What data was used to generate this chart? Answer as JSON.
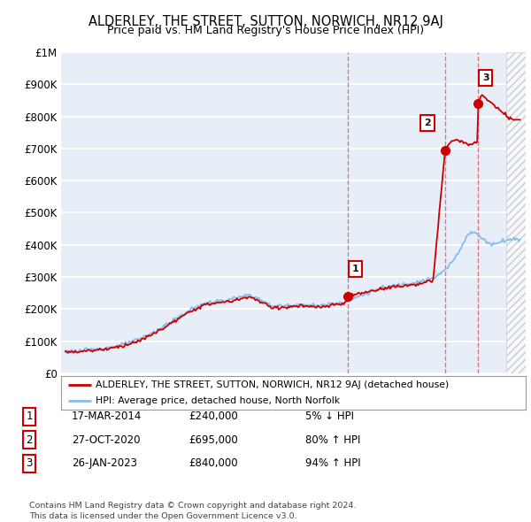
{
  "title": "ALDERLEY, THE STREET, SUTTON, NORWICH, NR12 9AJ",
  "subtitle": "Price paid vs. HM Land Registry's House Price Index (HPI)",
  "title_fontsize": 10.5,
  "subtitle_fontsize": 9,
  "ylim": [
    0,
    1000000
  ],
  "xlim_start": 1994.7,
  "xlim_end": 2026.3,
  "ytick_labels": [
    "£0",
    "£100K",
    "£200K",
    "£300K",
    "£400K",
    "£500K",
    "£600K",
    "£700K",
    "£800K",
    "£900K",
    "£1M"
  ],
  "ytick_values": [
    0,
    100000,
    200000,
    300000,
    400000,
    500000,
    600000,
    700000,
    800000,
    900000,
    1000000
  ],
  "background_color": "#e8eef8",
  "grid_color": "#ffffff",
  "hatch_color": "#cccccc",
  "line_color_red": "#cc0000",
  "line_color_blue": "#88bbee",
  "sale_dates": [
    2014.21,
    2020.82,
    2023.07
  ],
  "sale_prices": [
    240000,
    695000,
    840000
  ],
  "sale_labels": [
    "1",
    "2",
    "3"
  ],
  "legend_label_red": "ALDERLEY, THE STREET, SUTTON, NORWICH, NR12 9AJ (detached house)",
  "legend_label_blue": "HPI: Average price, detached house, North Norfolk",
  "table_rows": [
    [
      "1",
      "17-MAR-2014",
      "£240,000",
      "5% ↓ HPI"
    ],
    [
      "2",
      "27-OCT-2020",
      "£695,000",
      "80% ↑ HPI"
    ],
    [
      "3",
      "26-JAN-2023",
      "£840,000",
      "94% ↑ HPI"
    ]
  ],
  "footnote": "Contains HM Land Registry data © Crown copyright and database right 2024.\nThis data is licensed under the Open Government Licence v3.0.",
  "dashed_line_color": "#dd4444",
  "dashed_line_alpha": 0.7,
  "hpi_anchors_x": [
    1995.0,
    1996.0,
    1997.0,
    1998.0,
    1999.0,
    2000.0,
    2001.0,
    2002.0,
    2003.0,
    2004.0,
    2005.0,
    2006.0,
    2007.0,
    2007.5,
    2008.0,
    2009.0,
    2010.0,
    2011.0,
    2012.0,
    2013.0,
    2014.0,
    2015.0,
    2016.0,
    2017.0,
    2018.0,
    2019.0,
    2020.0,
    2020.5,
    2021.0,
    2021.5,
    2022.0,
    2022.3,
    2022.8,
    2023.0,
    2023.5,
    2024.0,
    2024.5,
    2025.0,
    2025.5
  ],
  "hpi_anchors_y": [
    68000,
    70000,
    74000,
    80000,
    90000,
    105000,
    128000,
    155000,
    183000,
    210000,
    222000,
    228000,
    238000,
    245000,
    235000,
    210000,
    210000,
    215000,
    210000,
    215000,
    222000,
    240000,
    258000,
    270000,
    278000,
    285000,
    295000,
    310000,
    330000,
    360000,
    400000,
    430000,
    440000,
    435000,
    415000,
    400000,
    410000,
    415000,
    418000
  ],
  "prop_anchors_x": [
    1995.0,
    1996.0,
    1997.0,
    1998.0,
    1999.0,
    2000.0,
    2001.0,
    2002.0,
    2003.0,
    2004.0,
    2005.0,
    2006.0,
    2007.0,
    2007.5,
    2008.0,
    2009.0,
    2010.0,
    2011.0,
    2012.0,
    2013.0,
    2014.0,
    2014.21,
    2015.0,
    2016.0,
    2017.0,
    2018.0,
    2019.0,
    2020.0,
    2020.82,
    2021.0,
    2021.5,
    2022.0,
    2022.5,
    2023.0,
    2023.07,
    2023.3,
    2023.5,
    2024.0,
    2024.5,
    2025.0,
    2025.5
  ],
  "prop_anchors_y": [
    66000,
    68000,
    72000,
    77000,
    87000,
    100000,
    123000,
    150000,
    178000,
    205000,
    218000,
    222000,
    232000,
    240000,
    228000,
    205000,
    205000,
    210000,
    205000,
    210000,
    218000,
    240000,
    248000,
    258000,
    268000,
    272000,
    278000,
    288000,
    695000,
    710000,
    730000,
    720000,
    710000,
    720000,
    840000,
    870000,
    860000,
    840000,
    820000,
    800000,
    790000
  ]
}
